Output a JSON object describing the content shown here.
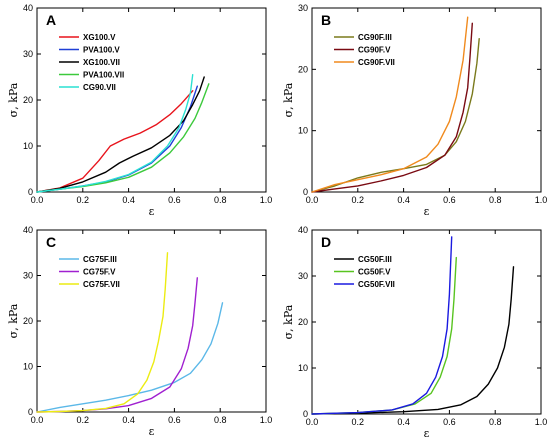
{
  "chart_data": [
    {
      "type": "line",
      "panel": "A",
      "xlabel": "ε",
      "ylabel": "σ, kPa",
      "xlim": [
        0.0,
        1.0
      ],
      "ylim": [
        0,
        40
      ],
      "xticks": [
        0.0,
        0.2,
        0.4,
        0.6,
        0.8,
        1.0
      ],
      "yticks": [
        0,
        10,
        20,
        30,
        40
      ],
      "xtick_labels": [
        "0.0",
        "0.2",
        "0.4",
        "0.6",
        "0.8",
        "1.0"
      ],
      "ytick_labels": [
        "0",
        "10",
        "20",
        "30",
        "40"
      ],
      "legend": "top-left",
      "series": [
        {
          "name": "XG100.V",
          "color": "#e8141c",
          "x": [
            0,
            0.1,
            0.2,
            0.27,
            0.32,
            0.38,
            0.45,
            0.52,
            0.58,
            0.63,
            0.68
          ],
          "y": [
            0,
            0.9,
            3,
            6.8,
            10,
            11.5,
            12.8,
            14.6,
            16.8,
            19.2,
            22
          ]
        },
        {
          "name": "PVA100.V",
          "color": "#1f3fd6",
          "x": [
            0,
            0.1,
            0.2,
            0.3,
            0.4,
            0.5,
            0.58,
            0.63,
            0.67,
            0.7
          ],
          "y": [
            0,
            0.6,
            1.3,
            2.2,
            3.7,
            6.3,
            10,
            14,
            18.5,
            23
          ]
        },
        {
          "name": "XG100.VII",
          "color": "#000000",
          "x": [
            0,
            0.1,
            0.2,
            0.3,
            0.36,
            0.42,
            0.5,
            0.58,
            0.64,
            0.68,
            0.71,
            0.73
          ],
          "y": [
            0,
            0.8,
            2.2,
            4.3,
            6.3,
            7.8,
            9.6,
            12.3,
            15.5,
            19,
            22,
            25
          ]
        },
        {
          "name": "PVA100.VII",
          "color": "#3cc93c",
          "x": [
            0,
            0.1,
            0.2,
            0.3,
            0.4,
            0.5,
            0.58,
            0.64,
            0.69,
            0.72,
            0.75
          ],
          "y": [
            0,
            0.6,
            1.2,
            2,
            3.2,
            5.4,
            8.5,
            12,
            16,
            19.5,
            23.5
          ]
        },
        {
          "name": "CG90.VII",
          "color": "#2ae0d2",
          "x": [
            0,
            0.1,
            0.2,
            0.3,
            0.4,
            0.5,
            0.57,
            0.62,
            0.65,
            0.67,
            0.68
          ],
          "y": [
            0,
            0.6,
            1.3,
            2.3,
            3.8,
            6.5,
            10,
            14,
            18,
            21.5,
            25.5
          ]
        }
      ]
    },
    {
      "type": "line",
      "panel": "B",
      "xlabel": "ε",
      "ylabel": "σ, kPa",
      "xlim": [
        0.0,
        1.0
      ],
      "ylim": [
        0,
        30
      ],
      "xticks": [
        0.0,
        0.2,
        0.4,
        0.6,
        0.8,
        1.0
      ],
      "yticks": [
        0,
        10,
        20,
        30
      ],
      "xtick_labels": [
        "0.0",
        "0.2",
        "0.4",
        "0.6",
        "0.8",
        "1.0"
      ],
      "ytick_labels": [
        "0",
        "10",
        "20",
        "30"
      ],
      "legend": "top-left",
      "series": [
        {
          "name": "CG90F.III",
          "color": "#7a7a1c",
          "x": [
            0,
            0.1,
            0.2,
            0.3,
            0.4,
            0.5,
            0.58,
            0.63,
            0.67,
            0.7,
            0.72,
            0.73
          ],
          "y": [
            0,
            1,
            2.3,
            3.2,
            3.8,
            4.5,
            6,
            8.2,
            11.5,
            16,
            21,
            25
          ]
        },
        {
          "name": "CG90F.V",
          "color": "#7a0a12",
          "x": [
            0,
            0.1,
            0.2,
            0.3,
            0.4,
            0.5,
            0.58,
            0.63,
            0.66,
            0.68,
            0.69,
            0.7
          ],
          "y": [
            0,
            0.5,
            1,
            1.8,
            2.7,
            4,
            6,
            9,
            13,
            17,
            22,
            27.5
          ]
        },
        {
          "name": "CG90F.VII",
          "color": "#f08a1e",
          "x": [
            0,
            0.1,
            0.2,
            0.3,
            0.4,
            0.5,
            0.55,
            0.6,
            0.63,
            0.66,
            0.68
          ],
          "y": [
            0,
            1.2,
            2,
            2.8,
            3.8,
            5.7,
            7.8,
            11.5,
            15.5,
            21.5,
            28.5
          ]
        }
      ]
    },
    {
      "type": "line",
      "panel": "C",
      "xlabel": "ε",
      "ylabel": "σ, kPa",
      "xlim": [
        0.0,
        1.0
      ],
      "ylim": [
        0,
        40
      ],
      "xticks": [
        0.0,
        0.2,
        0.4,
        0.6,
        0.8,
        1.0
      ],
      "yticks": [
        0,
        10,
        20,
        30,
        40
      ],
      "xtick_labels": [
        "0.0",
        "0.2",
        "0.4",
        "0.6",
        "0.8",
        "1.0"
      ],
      "ytick_labels": [
        "0",
        "10",
        "20",
        "30",
        "40"
      ],
      "legend": "top-left",
      "series": [
        {
          "name": "CG75F.III",
          "color": "#5bb8e8",
          "x": [
            0,
            0.1,
            0.2,
            0.3,
            0.4,
            0.5,
            0.6,
            0.67,
            0.72,
            0.76,
            0.79,
            0.81
          ],
          "y": [
            0,
            1,
            1.8,
            2.6,
            3.6,
            4.8,
            6.5,
            8.5,
            11.5,
            15,
            19.5,
            24
          ]
        },
        {
          "name": "CG75F.V",
          "color": "#a020d0",
          "x": [
            0,
            0.1,
            0.2,
            0.3,
            0.4,
            0.5,
            0.58,
            0.63,
            0.66,
            0.68,
            0.69,
            0.7
          ],
          "y": [
            0,
            0.1,
            0.3,
            0.7,
            1.4,
            3,
            5.5,
            9.5,
            14,
            19,
            24,
            29.5
          ]
        },
        {
          "name": "CG75F.VII",
          "color": "#ecec12",
          "x": [
            0,
            0.1,
            0.2,
            0.3,
            0.38,
            0.44,
            0.48,
            0.51,
            0.53,
            0.55,
            0.56,
            0.57
          ],
          "y": [
            0,
            0.1,
            0.3,
            0.8,
            1.8,
            4,
            7,
            11,
            15.5,
            21,
            27,
            35
          ]
        }
      ]
    },
    {
      "type": "line",
      "panel": "D",
      "xlabel": "ε",
      "ylabel": "σ, kPa",
      "xlim": [
        0.0,
        1.0
      ],
      "ylim": [
        0,
        40
      ],
      "xticks": [
        0.0,
        0.2,
        0.4,
        0.6,
        0.8,
        1.0
      ],
      "yticks": [
        0,
        10,
        20,
        30,
        40
      ],
      "xtick_labels": [
        "0.0",
        "0.2",
        "0.4",
        "0.6",
        "0.8",
        "1.0"
      ],
      "ytick_labels": [
        "0",
        "10",
        "20",
        "30",
        "40"
      ],
      "legend": "top-left",
      "series": [
        {
          "name": "CG50F.III",
          "color": "#000000",
          "x": [
            0,
            0.2,
            0.4,
            0.55,
            0.65,
            0.72,
            0.77,
            0.81,
            0.84,
            0.86,
            0.87,
            0.88
          ],
          "y": [
            0,
            0.2,
            0.5,
            1,
            2,
            3.8,
            6.5,
            10,
            14.5,
            19.5,
            25,
            32
          ]
        },
        {
          "name": "CG50F.V",
          "color": "#58c420",
          "x": [
            0,
            0.2,
            0.35,
            0.45,
            0.52,
            0.56,
            0.59,
            0.61,
            0.62,
            0.63
          ],
          "y": [
            0,
            0.3,
            0.9,
            2.2,
            4.5,
            8,
            12.5,
            18.5,
            25,
            34
          ]
        },
        {
          "name": "CG50F.VII",
          "color": "#1a1ae0",
          "x": [
            0,
            0.2,
            0.35,
            0.44,
            0.5,
            0.54,
            0.57,
            0.59,
            0.6,
            0.61
          ],
          "y": [
            0,
            0.3,
            0.9,
            2.2,
            4.5,
            8,
            12.5,
            18.5,
            26,
            38.5
          ]
        }
      ]
    }
  ]
}
